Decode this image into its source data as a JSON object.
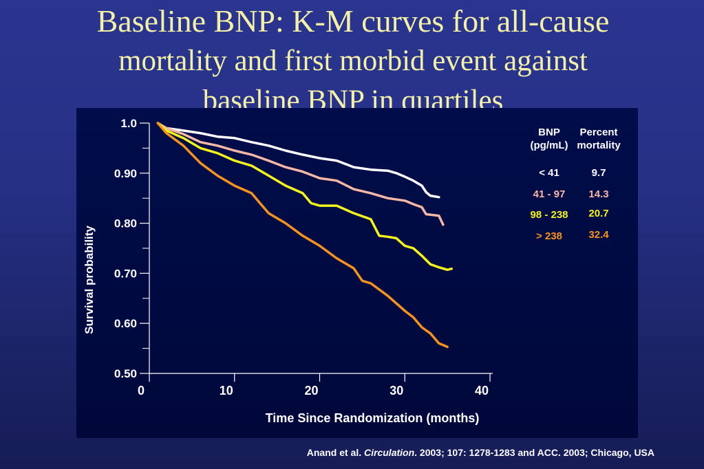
{
  "title": {
    "line1": "Baseline BNP: K-M curves for all-cause",
    "line2": "mortality and first morbid event against",
    "line3": "baseline BNP in quartiles"
  },
  "citation": {
    "authors": "Anand et al.",
    "journal": "Circulation",
    "rest": ". 2003; 107: 1278-1283 and ACC. 2003; Chicago, USA"
  },
  "chart_data": {
    "type": "line",
    "xlabel": "Time Since Randomization (months)",
    "ylabel": "Survival probability",
    "xlim": [
      0,
      40
    ],
    "ylim": [
      0.5,
      1.0
    ],
    "x_ticks": [
      0,
      10,
      20,
      30,
      40
    ],
    "y_ticks": [
      1.0,
      0.9,
      0.8,
      0.7,
      0.6,
      0.5
    ],
    "y_tick_labels": [
      "1.0",
      "0.90",
      "0.80",
      "0.70",
      "0.60",
      "0.50"
    ],
    "legend": {
      "header_bnp": "BNP",
      "header_bnp_unit": "(pg/mL)",
      "header_pct": "Percent",
      "header_pct_unit": "mortality",
      "placement": "top-right"
    },
    "series": [
      {
        "name": "< 41",
        "mortality": "9.7",
        "color": "#ffffff",
        "points": [
          [
            2,
            0.99
          ],
          [
            4,
            0.985
          ],
          [
            6,
            0.98
          ],
          [
            8,
            0.973
          ],
          [
            10,
            0.97
          ],
          [
            12,
            0.962
          ],
          [
            14,
            0.955
          ],
          [
            16,
            0.945
          ],
          [
            18,
            0.937
          ],
          [
            20,
            0.93
          ],
          [
            22,
            0.925
          ],
          [
            24,
            0.912
          ],
          [
            26,
            0.907
          ],
          [
            28,
            0.905
          ],
          [
            29,
            0.9
          ],
          [
            30,
            0.893
          ],
          [
            31,
            0.885
          ],
          [
            32,
            0.875
          ],
          [
            32.5,
            0.862
          ],
          [
            33,
            0.855
          ],
          [
            34,
            0.852
          ]
        ]
      },
      {
        "name": "41 - 97",
        "mortality": "14.3",
        "color": "#f8b8a6",
        "points": [
          [
            1,
            1.0
          ],
          [
            2,
            0.99
          ],
          [
            4,
            0.978
          ],
          [
            6,
            0.962
          ],
          [
            8,
            0.955
          ],
          [
            10,
            0.945
          ],
          [
            12,
            0.937
          ],
          [
            14,
            0.925
          ],
          [
            16,
            0.912
          ],
          [
            18,
            0.903
          ],
          [
            20,
            0.89
          ],
          [
            22,
            0.885
          ],
          [
            24,
            0.868
          ],
          [
            26,
            0.86
          ],
          [
            28,
            0.85
          ],
          [
            30,
            0.845
          ],
          [
            31,
            0.838
          ],
          [
            32,
            0.832
          ],
          [
            32.5,
            0.818
          ],
          [
            34,
            0.815
          ],
          [
            34.5,
            0.797
          ]
        ]
      },
      {
        "name": "98 - 238",
        "mortality": "20.7",
        "color": "#f5f51e",
        "points": [
          [
            1,
            1.0
          ],
          [
            2,
            0.985
          ],
          [
            4,
            0.97
          ],
          [
            6,
            0.95
          ],
          [
            8,
            0.94
          ],
          [
            10,
            0.925
          ],
          [
            12,
            0.915
          ],
          [
            14,
            0.895
          ],
          [
            16,
            0.875
          ],
          [
            18,
            0.86
          ],
          [
            19,
            0.84
          ],
          [
            20,
            0.835
          ],
          [
            22,
            0.835
          ],
          [
            24,
            0.82
          ],
          [
            26,
            0.808
          ],
          [
            27,
            0.775
          ],
          [
            28,
            0.773
          ],
          [
            29,
            0.77
          ],
          [
            30,
            0.755
          ],
          [
            31,
            0.75
          ],
          [
            32,
            0.735
          ],
          [
            33,
            0.718
          ],
          [
            34,
            0.712
          ],
          [
            35,
            0.707
          ],
          [
            35.5,
            0.709
          ]
        ]
      },
      {
        "name": "> 238",
        "mortality": "32.4",
        "color": "#f7941d",
        "points": [
          [
            1,
            1.0
          ],
          [
            2,
            0.98
          ],
          [
            4,
            0.955
          ],
          [
            6,
            0.92
          ],
          [
            8,
            0.895
          ],
          [
            10,
            0.875
          ],
          [
            12,
            0.86
          ],
          [
            14,
            0.82
          ],
          [
            16,
            0.8
          ],
          [
            18,
            0.775
          ],
          [
            20,
            0.755
          ],
          [
            22,
            0.73
          ],
          [
            24,
            0.71
          ],
          [
            25,
            0.685
          ],
          [
            26,
            0.68
          ],
          [
            28,
            0.655
          ],
          [
            30,
            0.625
          ],
          [
            31,
            0.612
          ],
          [
            32,
            0.592
          ],
          [
            33,
            0.58
          ],
          [
            34,
            0.56
          ],
          [
            35,
            0.553
          ]
        ]
      }
    ]
  }
}
